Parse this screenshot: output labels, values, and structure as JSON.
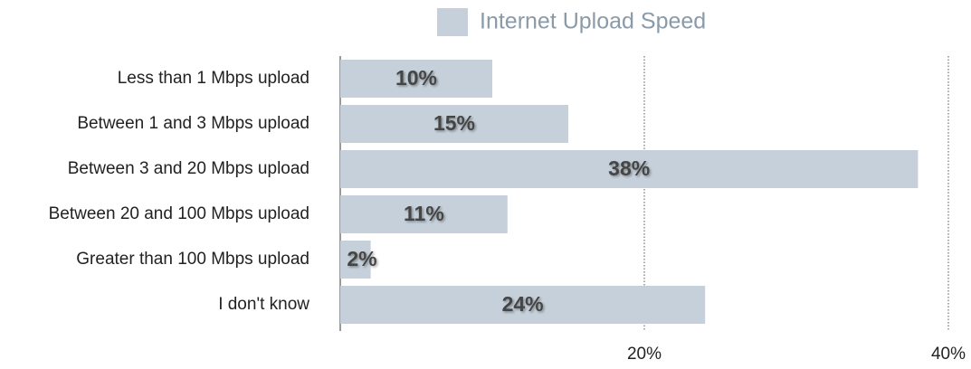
{
  "chart_data": {
    "type": "hbar",
    "categories": [
      "Less than 1 Mbps upload",
      "Between 1 and 3 Mbps upload",
      "Between 3 and 20 Mbps upload",
      "Between 20 and 100 Mbps upload",
      "Greater than 100 Mbps upload",
      "I don't know"
    ],
    "series": [
      {
        "name": "Internet Upload Speed",
        "color": "#c5d0da",
        "values": [
          10,
          15,
          38,
          11,
          2,
          24
        ],
        "value_labels": [
          "10%",
          "15%",
          "38%",
          "11%",
          "2%",
          "24%"
        ]
      }
    ],
    "xlim": [
      0,
      40
    ],
    "xticks": [
      {
        "value": 20,
        "label": "20%"
      },
      {
        "value": 40,
        "label": "40%"
      }
    ],
    "grid": true,
    "legend": "top"
  }
}
